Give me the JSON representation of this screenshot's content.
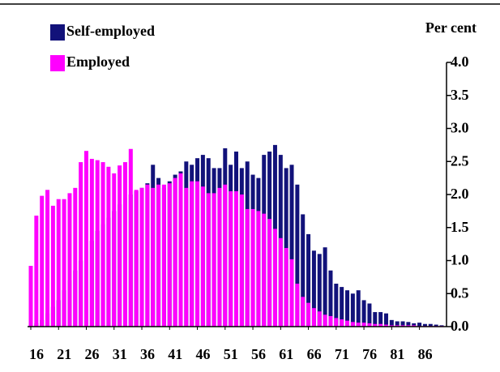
{
  "chart_data": {
    "type": "bar",
    "y_axis_label": "Per cent",
    "x": [
      16,
      17,
      18,
      19,
      20,
      21,
      22,
      23,
      24,
      25,
      26,
      27,
      28,
      29,
      30,
      31,
      32,
      33,
      34,
      35,
      36,
      37,
      38,
      39,
      40,
      41,
      42,
      43,
      44,
      45,
      46,
      47,
      48,
      49,
      50,
      51,
      52,
      53,
      54,
      55,
      56,
      57,
      58,
      59,
      60,
      61,
      62,
      63,
      64,
      65,
      66,
      67,
      68,
      69,
      70,
      71,
      72,
      73,
      74,
      75,
      76,
      77,
      78,
      79,
      80,
      81,
      82,
      83,
      84,
      85,
      86,
      87,
      88,
      89,
      90
    ],
    "xlim": [
      16,
      90
    ],
    "xticks": [
      16,
      21,
      26,
      31,
      36,
      41,
      46,
      51,
      56,
      61,
      66,
      71,
      76,
      81,
      86
    ],
    "ylim": [
      0,
      4
    ],
    "yticks": [
      {
        "value": 0,
        "label": "0.0"
      },
      0.5,
      {
        "value": 1,
        "label": "1.0"
      },
      1.5,
      {
        "value": 2,
        "label": "2.0"
      },
      2.5,
      {
        "value": 3,
        "label": "3.0"
      },
      3.5,
      {
        "value": 4,
        "label": "4.0"
      }
    ],
    "series": [
      {
        "name": "Self-employed",
        "color": "#12127a",
        "values": [
          0.02,
          0.05,
          0.1,
          0.2,
          0.3,
          0.4,
          0.55,
          0.7,
          0.85,
          1.0,
          1.15,
          1.3,
          1.45,
          1.55,
          1.65,
          1.75,
          1.85,
          1.95,
          2.0,
          2.05,
          2.1,
          2.17,
          2.45,
          2.25,
          2.1,
          2.2,
          2.3,
          2.35,
          2.5,
          2.45,
          2.55,
          2.6,
          2.55,
          2.4,
          2.4,
          2.7,
          2.45,
          2.65,
          2.4,
          2.5,
          2.3,
          2.25,
          2.6,
          2.65,
          2.75,
          2.6,
          2.4,
          2.45,
          2.15,
          1.7,
          1.4,
          1.15,
          1.1,
          1.2,
          0.85,
          0.65,
          0.6,
          0.55,
          0.5,
          0.55,
          0.4,
          0.35,
          0.22,
          0.22,
          0.2,
          0.1,
          0.08,
          0.08,
          0.07,
          0.05,
          0.06,
          0.04,
          0.04,
          0.03,
          0.02
        ]
      },
      {
        "name": "Employed",
        "color": "#ff00ff",
        "values": [
          0.92,
          1.68,
          1.98,
          2.07,
          1.83,
          1.93,
          1.93,
          2.02,
          2.1,
          2.49,
          2.66,
          2.54,
          2.52,
          2.49,
          2.42,
          2.32,
          2.44,
          2.49,
          2.69,
          2.07,
          2.1,
          2.15,
          2.1,
          2.15,
          2.15,
          2.17,
          2.25,
          2.32,
          2.1,
          2.2,
          2.2,
          2.12,
          2.02,
          2.02,
          2.1,
          2.15,
          2.05,
          2.05,
          2.0,
          1.78,
          1.78,
          1.75,
          1.71,
          1.63,
          1.48,
          1.34,
          1.19,
          1.02,
          0.65,
          0.45,
          0.36,
          0.28,
          0.23,
          0.18,
          0.16,
          0.13,
          0.11,
          0.09,
          0.07,
          0.06,
          0.06,
          0.05,
          0.04,
          0.04,
          0.03,
          0.02,
          0.02,
          0.02,
          0.02,
          0.02,
          0.01,
          0.01,
          0.01,
          0.01,
          0.01
        ]
      }
    ]
  }
}
